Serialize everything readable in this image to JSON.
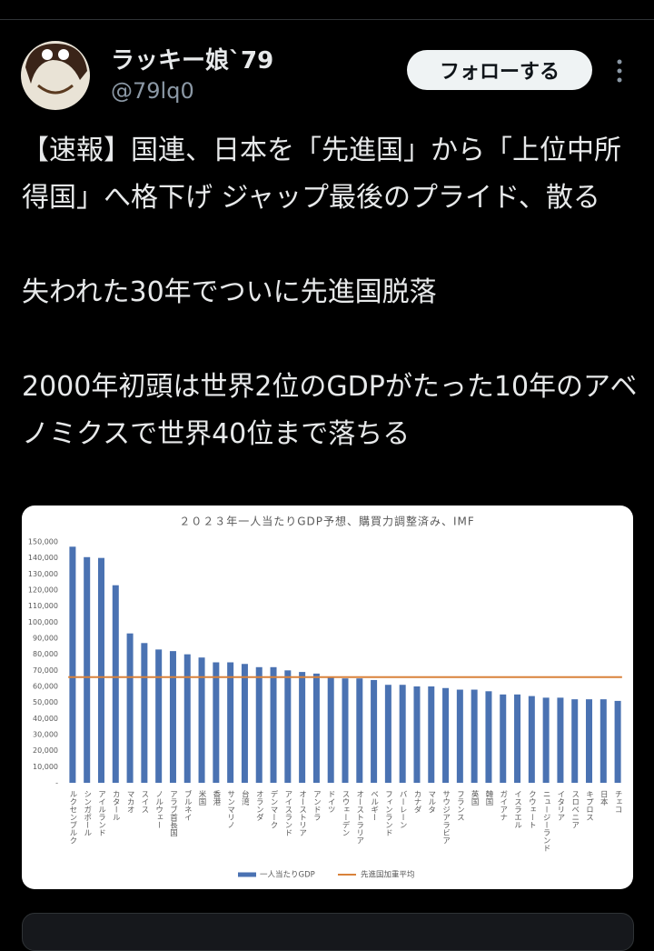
{
  "tweet": {
    "name": "ラッキー娘`79",
    "handle": "@79lq0",
    "follow": "フォローする",
    "paragraphs": [
      "【速報】国連、日本を「先進国」から「上位中所得国」へ格下げ ジャップ最後のプライド、散る",
      "失われた30年でついに先進国脱落",
      "2000年初頭は世界2位のGDPがたった10年のアベノミクスで世界40位まで落ちる"
    ]
  },
  "chart_data": {
    "type": "bar",
    "title": "２０２３年一人当たりGDP予想、購買力調整済み、IMF",
    "categories": [
      "ルクセンブルク",
      "シンガポール",
      "アイルランド",
      "カタール",
      "マカオ",
      "スイス",
      "ノルウェー",
      "アラブ首長国",
      "ブルネイ",
      "米国",
      "香港",
      "サンマリノ",
      "台湾",
      "オランダ",
      "デンマーク",
      "アイスランド",
      "オーストリア",
      "アンドラ",
      "ドイツ",
      "スウェーデン",
      "オーストラリア",
      "ベルギー",
      "フィンランド",
      "バーレーン",
      "カナダ",
      "マルタ",
      "サウジアラビア",
      "フランス",
      "英国",
      "韓国",
      "ガイアナ",
      "イスラエル",
      "クウェート",
      "ニュージーランド",
      "イタリア",
      "スロベニア",
      "キプロス",
      "日本",
      "チェコ"
    ],
    "series": [
      {
        "name": "一人当たりGDP",
        "color": "#4a72b2",
        "values": [
          147000,
          140500,
          140000,
          123000,
          93000,
          87000,
          83000,
          82000,
          80000,
          78000,
          75000,
          75000,
          74000,
          72000,
          72000,
          70000,
          69000,
          68000,
          66000,
          65000,
          65000,
          64000,
          61000,
          61000,
          60000,
          60000,
          59000,
          58000,
          58000,
          57000,
          55000,
          55000,
          54000,
          53000,
          53000,
          52000,
          52000,
          52000,
          51000
        ]
      }
    ],
    "reference_line": {
      "name": "先進国加重平均",
      "color": "#d9823b",
      "value": 65800
    },
    "ylim": [
      0,
      150000
    ],
    "yticks": [
      {
        "value": 0,
        "label": "-"
      },
      {
        "value": 10000,
        "label": "10,000"
      },
      {
        "value": 20000,
        "label": "20,000"
      },
      {
        "value": 30000,
        "label": "30,000"
      },
      {
        "value": 40000,
        "label": "40,000"
      },
      {
        "value": 50000,
        "label": "50,000"
      },
      {
        "value": 60000,
        "label": "60,000"
      },
      {
        "value": 70000,
        "label": "70,000"
      },
      {
        "value": 80000,
        "label": "80,000"
      },
      {
        "value": 90000,
        "label": "90,000"
      },
      {
        "value": 100000,
        "label": "100,000"
      },
      {
        "value": 110000,
        "label": "110,000"
      },
      {
        "value": 120000,
        "label": "120,000"
      },
      {
        "value": 130000,
        "label": "130,000"
      },
      {
        "value": 140000,
        "label": "140,000"
      },
      {
        "value": 150000,
        "label": "150,000"
      }
    ],
    "grid": false
  }
}
